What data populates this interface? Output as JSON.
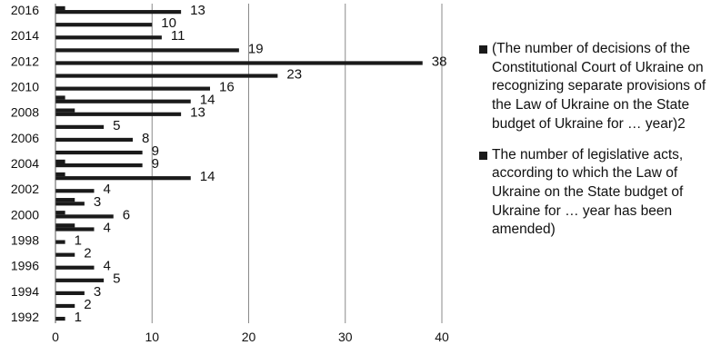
{
  "chart_data": {
    "type": "bar",
    "orientation": "horizontal",
    "title": "",
    "xlabel": "",
    "ylabel": "",
    "xlim": [
      0,
      40
    ],
    "x_ticks": [
      0,
      10,
      20,
      30,
      40
    ],
    "y_tick_labels": [
      "2016",
      "2014",
      "2012",
      "2010",
      "2008",
      "2006",
      "2004",
      "2002",
      "2000",
      "1998",
      "1996",
      "1994",
      "1992"
    ],
    "categories": [
      "2016",
      "2015",
      "2014",
      "2013",
      "2012",
      "2011",
      "2010",
      "2009",
      "2008",
      "2007",
      "2006",
      "2005",
      "2004",
      "2003",
      "2002",
      "2001",
      "2000",
      "1999",
      "1998",
      "1997",
      "1996",
      "1995",
      "1994",
      "1993",
      "1992"
    ],
    "grid": "vertical",
    "legend_position": "right",
    "series": [
      {
        "name": "(The number of decisions of the Constitutional Court of Ukraine on recognizing separate provisions of the Law of Ukraine on the State budget of Ukraine for … year)2",
        "color": "#1a1a1a",
        "values": [
          1,
          0,
          0,
          0,
          0,
          0,
          0,
          1,
          2,
          0,
          0,
          0,
          1,
          1,
          0,
          2,
          1,
          2,
          0,
          0,
          0,
          0,
          0,
          0,
          0
        ]
      },
      {
        "name": "The number of legislative acts, according to which the Law of Ukraine on the State budget of Ukraine for … year has been amended)",
        "color": "#1a1a1a",
        "values": [
          13,
          10,
          11,
          19,
          38,
          23,
          16,
          14,
          13,
          5,
          8,
          9,
          9,
          14,
          4,
          3,
          6,
          4,
          1,
          2,
          4,
          5,
          3,
          2,
          1
        ]
      }
    ]
  }
}
